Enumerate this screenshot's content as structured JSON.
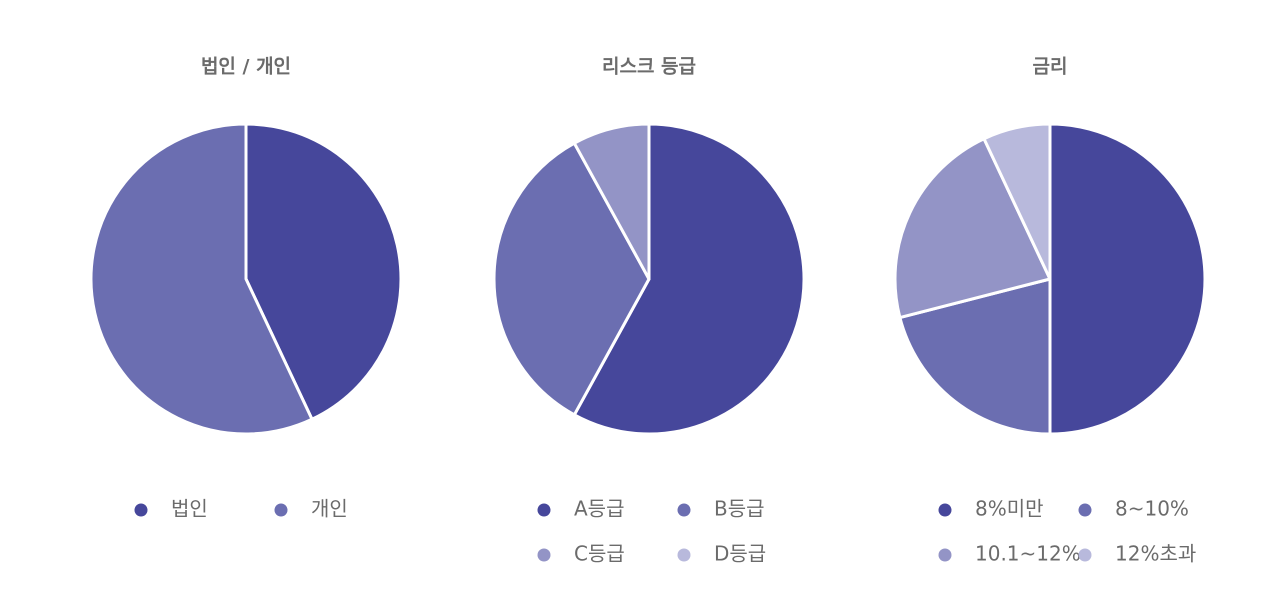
{
  "chart_data": [
    {
      "type": "pie",
      "title": "법인 / 개인",
      "categories": [
        "법인",
        "개인"
      ],
      "values": [
        43,
        57
      ],
      "colors": [
        "#46479b",
        "#6b6eb1"
      ]
    },
    {
      "type": "pie",
      "title": "리스크 등급",
      "categories": [
        "A등급",
        "B등급",
        "C등급",
        "D등급"
      ],
      "values": [
        58,
        34,
        8,
        0
      ],
      "colors": [
        "#46479b",
        "#6b6eb1",
        "#9394c6",
        "#b8b9dc"
      ]
    },
    {
      "type": "pie",
      "title": "금리",
      "categories": [
        "8%미만",
        "8~10%",
        "10.1~12%",
        "12%초과"
      ],
      "values": [
        50,
        21,
        22,
        7
      ],
      "colors": [
        "#46479b",
        "#6b6eb1",
        "#9394c6",
        "#b8b9dc"
      ]
    }
  ]
}
